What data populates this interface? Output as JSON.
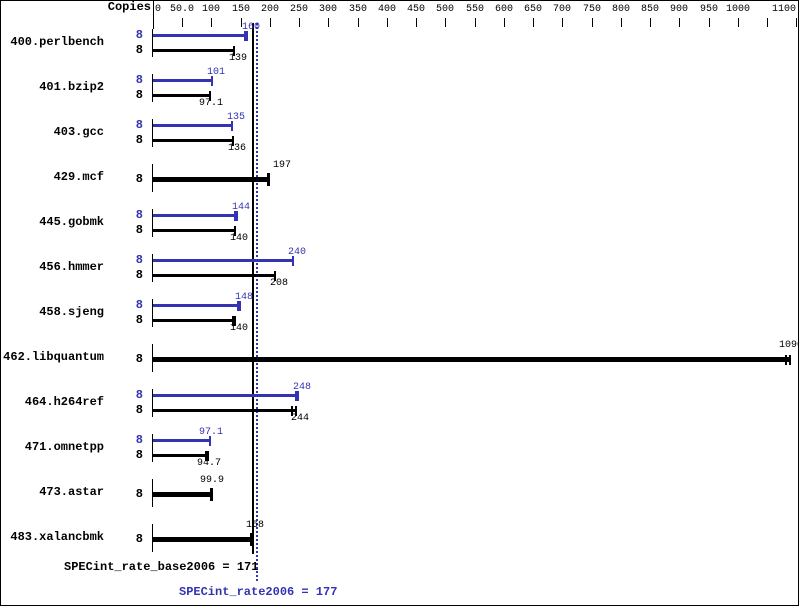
{
  "colors": {
    "peak_blue": "#3333b3",
    "base_black": "#000000",
    "background": "#ffffff",
    "border": "#000000"
  },
  "header": {
    "copies_label": "Copies"
  },
  "axis": {
    "max_value": 1103,
    "ticks": [
      {
        "value": 0,
        "label": "0",
        "align": "left"
      },
      {
        "value": 50,
        "label": "50.0"
      },
      {
        "value": 100,
        "label": "100"
      },
      {
        "value": 150,
        "label": "150"
      },
      {
        "value": 200,
        "label": "200"
      },
      {
        "value": 250,
        "label": "250"
      },
      {
        "value": 300,
        "label": "300"
      },
      {
        "value": 350,
        "label": "350"
      },
      {
        "value": 400,
        "label": "400"
      },
      {
        "value": 450,
        "label": "450"
      },
      {
        "value": 500,
        "label": "500"
      },
      {
        "value": 550,
        "label": "550"
      },
      {
        "value": 600,
        "label": "600"
      },
      {
        "value": 650,
        "label": "650"
      },
      {
        "value": 700,
        "label": "700"
      },
      {
        "value": 750,
        "label": "750"
      },
      {
        "value": 800,
        "label": "800"
      },
      {
        "value": 850,
        "label": "850"
      },
      {
        "value": 900,
        "label": "900"
      },
      {
        "value": 950,
        "label": "950"
      },
      {
        "value": 1000,
        "label": "1000"
      },
      {
        "value": 1050,
        "label": ""
      },
      {
        "value": 1100,
        "label": "1100",
        "align": "right"
      }
    ]
  },
  "chart_data": {
    "type": "bar",
    "orientation": "horizontal",
    "legend": "blue = SPECint_rate2006 (peak), black = SPECint_rate_base2006 (base); single thick bar = base and peak equal",
    "xlim": [
      0,
      1103
    ],
    "benchmarks": [
      {
        "name": "400.perlbench",
        "copies": "8",
        "peak": "160",
        "base": "139",
        "peak_cap": "thick",
        "base_cap": "thin"
      },
      {
        "name": "401.bzip2",
        "copies": "8",
        "peak": "101",
        "base": "97.1",
        "peak_cap": "thin",
        "base_cap": "thin"
      },
      {
        "name": "403.gcc",
        "copies": "8",
        "peak": "135",
        "base": "136",
        "peak_cap": "thin",
        "base_cap": "thin"
      },
      {
        "name": "429.mcf",
        "copies": "8",
        "peak": "197",
        "base": "197",
        "single": true,
        "label_dx": 10
      },
      {
        "name": "445.gobmk",
        "copies": "8",
        "peak": "144",
        "base": "140",
        "peak_cap": "thick",
        "base_cap": "thin"
      },
      {
        "name": "456.hmmer",
        "copies": "8",
        "peak": "240",
        "base": "208",
        "peak_cap": "thin",
        "base_cap": "thin"
      },
      {
        "name": "458.sjeng",
        "copies": "8",
        "peak": "148",
        "base": "140",
        "peak_cap": "thick",
        "base_cap": "thick"
      },
      {
        "name": "462.libquantum",
        "copies": "8",
        "peak": "1090",
        "base": "1090",
        "single": true,
        "end_cap": "double"
      },
      {
        "name": "464.h264ref",
        "copies": "8",
        "peak": "248",
        "base": "244",
        "peak_cap": "thick",
        "base_cap": "double"
      },
      {
        "name": "471.omnetpp",
        "copies": "8",
        "peak": "97.1",
        "base": "94.7",
        "peak_cap": "thin",
        "base_cap": "thick"
      },
      {
        "name": "473.astar",
        "copies": "8",
        "peak": "99.9",
        "base": "99.9",
        "single": true
      },
      {
        "name": "483.xalancbmk",
        "copies": "8",
        "peak": "168",
        "base": "168",
        "single": true
      }
    ],
    "summary": {
      "base_text": "SPECint_rate_base2006 = 171",
      "base_value": 171,
      "peak_text": "SPECint_rate2006 = 177",
      "peak_value": 177
    }
  }
}
